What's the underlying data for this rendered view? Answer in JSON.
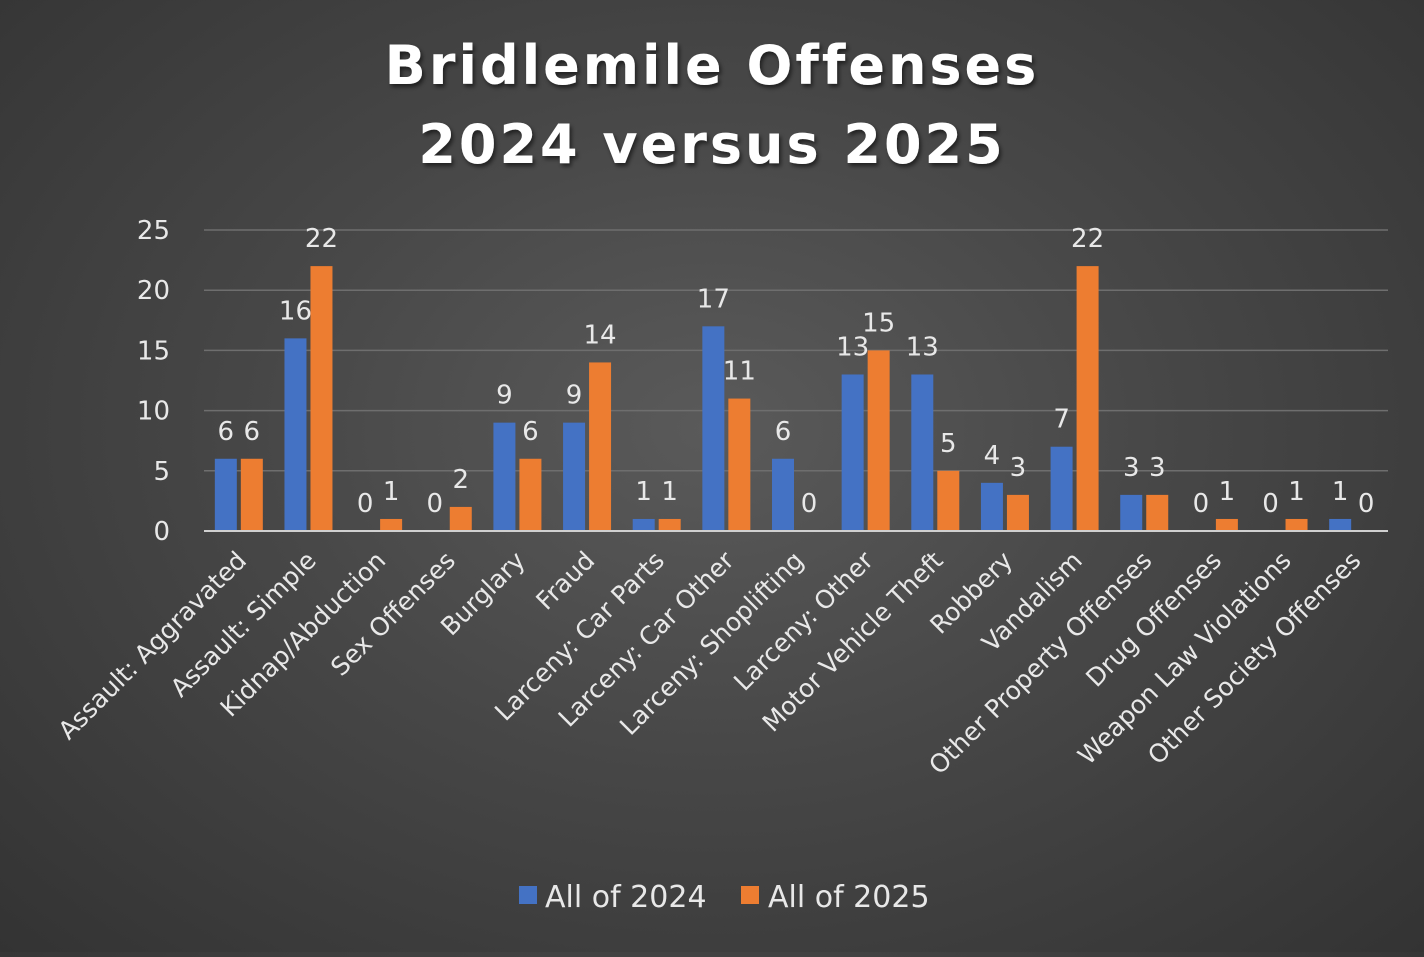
{
  "chart_data": {
    "type": "bar",
    "title_lines": [
      "Bridlemile Offenses",
      "2024 versus 2025"
    ],
    "categories": [
      "Assault: Aggravated",
      "Assault: Simple",
      "Kidnap/Abduction",
      "Sex Offenses",
      "Burglary",
      "Fraud",
      "Larceny: Car Parts",
      "Larceny: Car Other",
      "Larceny: Shoplifting",
      "Larceny: Other",
      "Motor Vehicle Theft",
      "Robbery",
      "Vandalism",
      "Other Property Offenses",
      "Drug Offenses",
      "Weapon Law Violations",
      "Other Society Offenses"
    ],
    "series": [
      {
        "name": "All of 2024",
        "color": "#4472C4",
        "values": [
          6,
          16,
          0,
          0,
          9,
          9,
          1,
          17,
          6,
          13,
          13,
          4,
          7,
          3,
          0,
          0,
          1
        ]
      },
      {
        "name": "All of 2025",
        "color": "#ED7D31",
        "values": [
          6,
          22,
          1,
          2,
          6,
          14,
          1,
          11,
          0,
          15,
          5,
          3,
          22,
          3,
          1,
          1,
          0
        ]
      }
    ],
    "yticks": [
      0,
      5,
      10,
      15,
      20,
      25
    ],
    "ylim": [
      0,
      25
    ],
    "xlabel": "",
    "ylabel": "",
    "grid": true,
    "legend_position": "bottom"
  }
}
